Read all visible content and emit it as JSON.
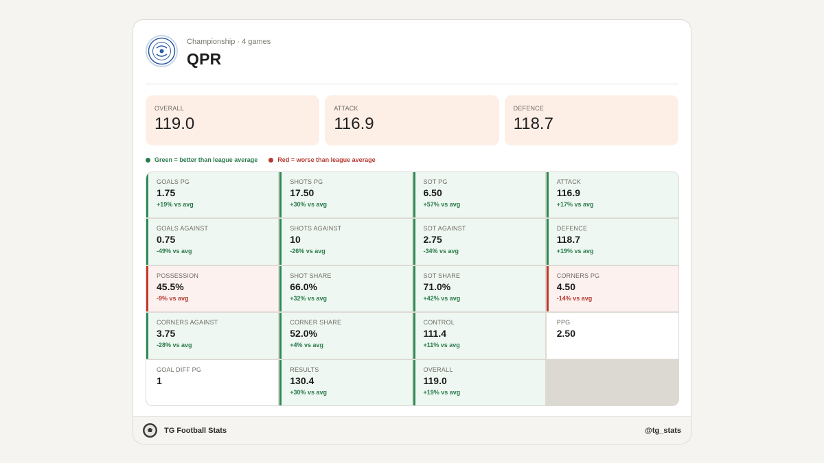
{
  "header": {
    "subtitle": "Championship · 4 games",
    "team": "QPR",
    "crest_icon": "qpr-crest-logo"
  },
  "summary": [
    {
      "label": "OVERALL",
      "value": "119.0"
    },
    {
      "label": "ATTACK",
      "value": "116.9"
    },
    {
      "label": "DEFENCE",
      "value": "118.7"
    }
  ],
  "legend": {
    "good": "Green = better than league average",
    "bad": "Red = worse than league average",
    "good_color": "#2a7a4b",
    "bad_color": "#b43a31"
  },
  "stats": [
    {
      "label": "GOALS PG",
      "value": "1.75",
      "delta": "+19% vs avg",
      "status": "good"
    },
    {
      "label": "SHOTS PG",
      "value": "17.50",
      "delta": "+30% vs avg",
      "status": "good"
    },
    {
      "label": "SOT PG",
      "value": "6.50",
      "delta": "+57% vs avg",
      "status": "good"
    },
    {
      "label": "ATTACK",
      "value": "116.9",
      "delta": "+17% vs avg",
      "status": "good"
    },
    {
      "label": "GOALS AGAINST",
      "value": "0.75",
      "delta": "-49% vs avg",
      "status": "good"
    },
    {
      "label": "SHOTS AGAINST",
      "value": "10",
      "delta": "-26% vs avg",
      "status": "good"
    },
    {
      "label": "SOT AGAINST",
      "value": "2.75",
      "delta": "-34% vs avg",
      "status": "good"
    },
    {
      "label": "DEFENCE",
      "value": "118.7",
      "delta": "+19% vs avg",
      "status": "good"
    },
    {
      "label": "POSSESSION",
      "value": "45.5%",
      "delta": "-9% vs avg",
      "status": "bad"
    },
    {
      "label": "SHOT SHARE",
      "value": "66.0%",
      "delta": "+32% vs avg",
      "status": "good"
    },
    {
      "label": "SOT SHARE",
      "value": "71.0%",
      "delta": "+42% vs avg",
      "status": "good"
    },
    {
      "label": "CORNERS PG",
      "value": "4.50",
      "delta": "-14% vs avg",
      "status": "bad"
    },
    {
      "label": "CORNERS AGAINST",
      "value": "3.75",
      "delta": "-28% vs avg",
      "status": "good"
    },
    {
      "label": "CORNER SHARE",
      "value": "52.0%",
      "delta": "+4% vs avg",
      "status": "good"
    },
    {
      "label": "CONTROL",
      "value": "111.4",
      "delta": "+11% vs avg",
      "status": "good"
    },
    {
      "label": "PPG",
      "value": "2.50",
      "delta": "",
      "status": "neutral"
    },
    {
      "label": "GOAL DIFF PG",
      "value": "1",
      "delta": "",
      "status": "neutral"
    },
    {
      "label": "RESULTS",
      "value": "130.4",
      "delta": "+30% vs avg",
      "status": "good"
    },
    {
      "label": "OVERALL",
      "value": "119.0",
      "delta": "+19% vs avg",
      "status": "good"
    },
    {
      "label": "",
      "value": "",
      "delta": "",
      "status": "empty"
    }
  ],
  "footer": {
    "brand": "TG Football Stats",
    "handle": "@tg_stats",
    "logo_icon": "football-icon"
  }
}
